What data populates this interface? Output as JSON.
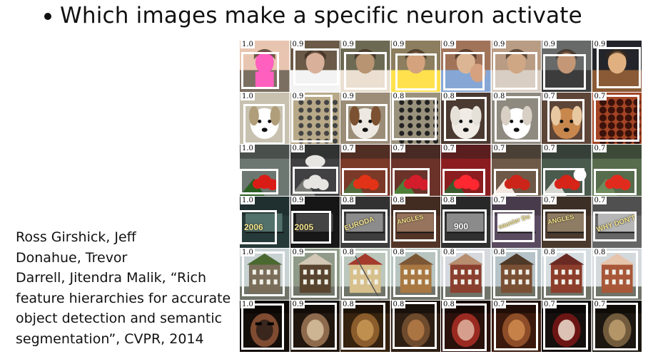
{
  "header": {
    "title": "Which images make a specific neuron activate"
  },
  "citation": {
    "lines": [
      "Ross Girshick, Jeff",
      "Donahue, Trevor",
      "Darrell, Jitendra Malik, “Rich",
      "feature hierarchies for accurate",
      "object detection and semantic",
      "segmentation”, CVPR, 2014"
    ]
  },
  "image_grid": {
    "rows": [
      {
        "scores": [
          "1.0",
          "0.9",
          "0.9",
          "0.9",
          "0.9",
          "0.9",
          "0.9",
          "0.9"
        ]
      },
      {
        "scores": [
          "1.0",
          "0.9",
          "0.9",
          "0.8",
          "0.8",
          "0.8",
          "0.7",
          "0.7"
        ]
      },
      {
        "scores": [
          "1.0",
          "0.8",
          "0.7",
          "0.7",
          "0.7",
          "0.7",
          "0.7",
          "0.7"
        ]
      },
      {
        "scores": [
          "1.0",
          "0.9",
          "0.8",
          "0.8",
          "0.8",
          "0.7",
          "0.7",
          "0.7"
        ]
      },
      {
        "scores": [
          "1.0",
          "0.9",
          "0.8",
          "0.8",
          "0.8",
          "0.8",
          "0.8",
          "0.8"
        ]
      },
      {
        "scores": [
          "1.0",
          "0.9",
          "0.8",
          "0.8",
          "0.8",
          "0.7",
          "0.7",
          "0.7"
        ]
      }
    ],
    "tile_text": {
      "r3c0": "2006",
      "r3c1": "2005",
      "r3c2": "EURODA",
      "r3c3": "ANGLES",
      "r3c4": "900",
      "r3c5": "saunier Du",
      "r3c6": "ANGLES",
      "r3c7": "WHY DON'T"
    }
  },
  "colors": {
    "background": "#ffffff",
    "text": "#111111",
    "box": "#ffffff"
  }
}
